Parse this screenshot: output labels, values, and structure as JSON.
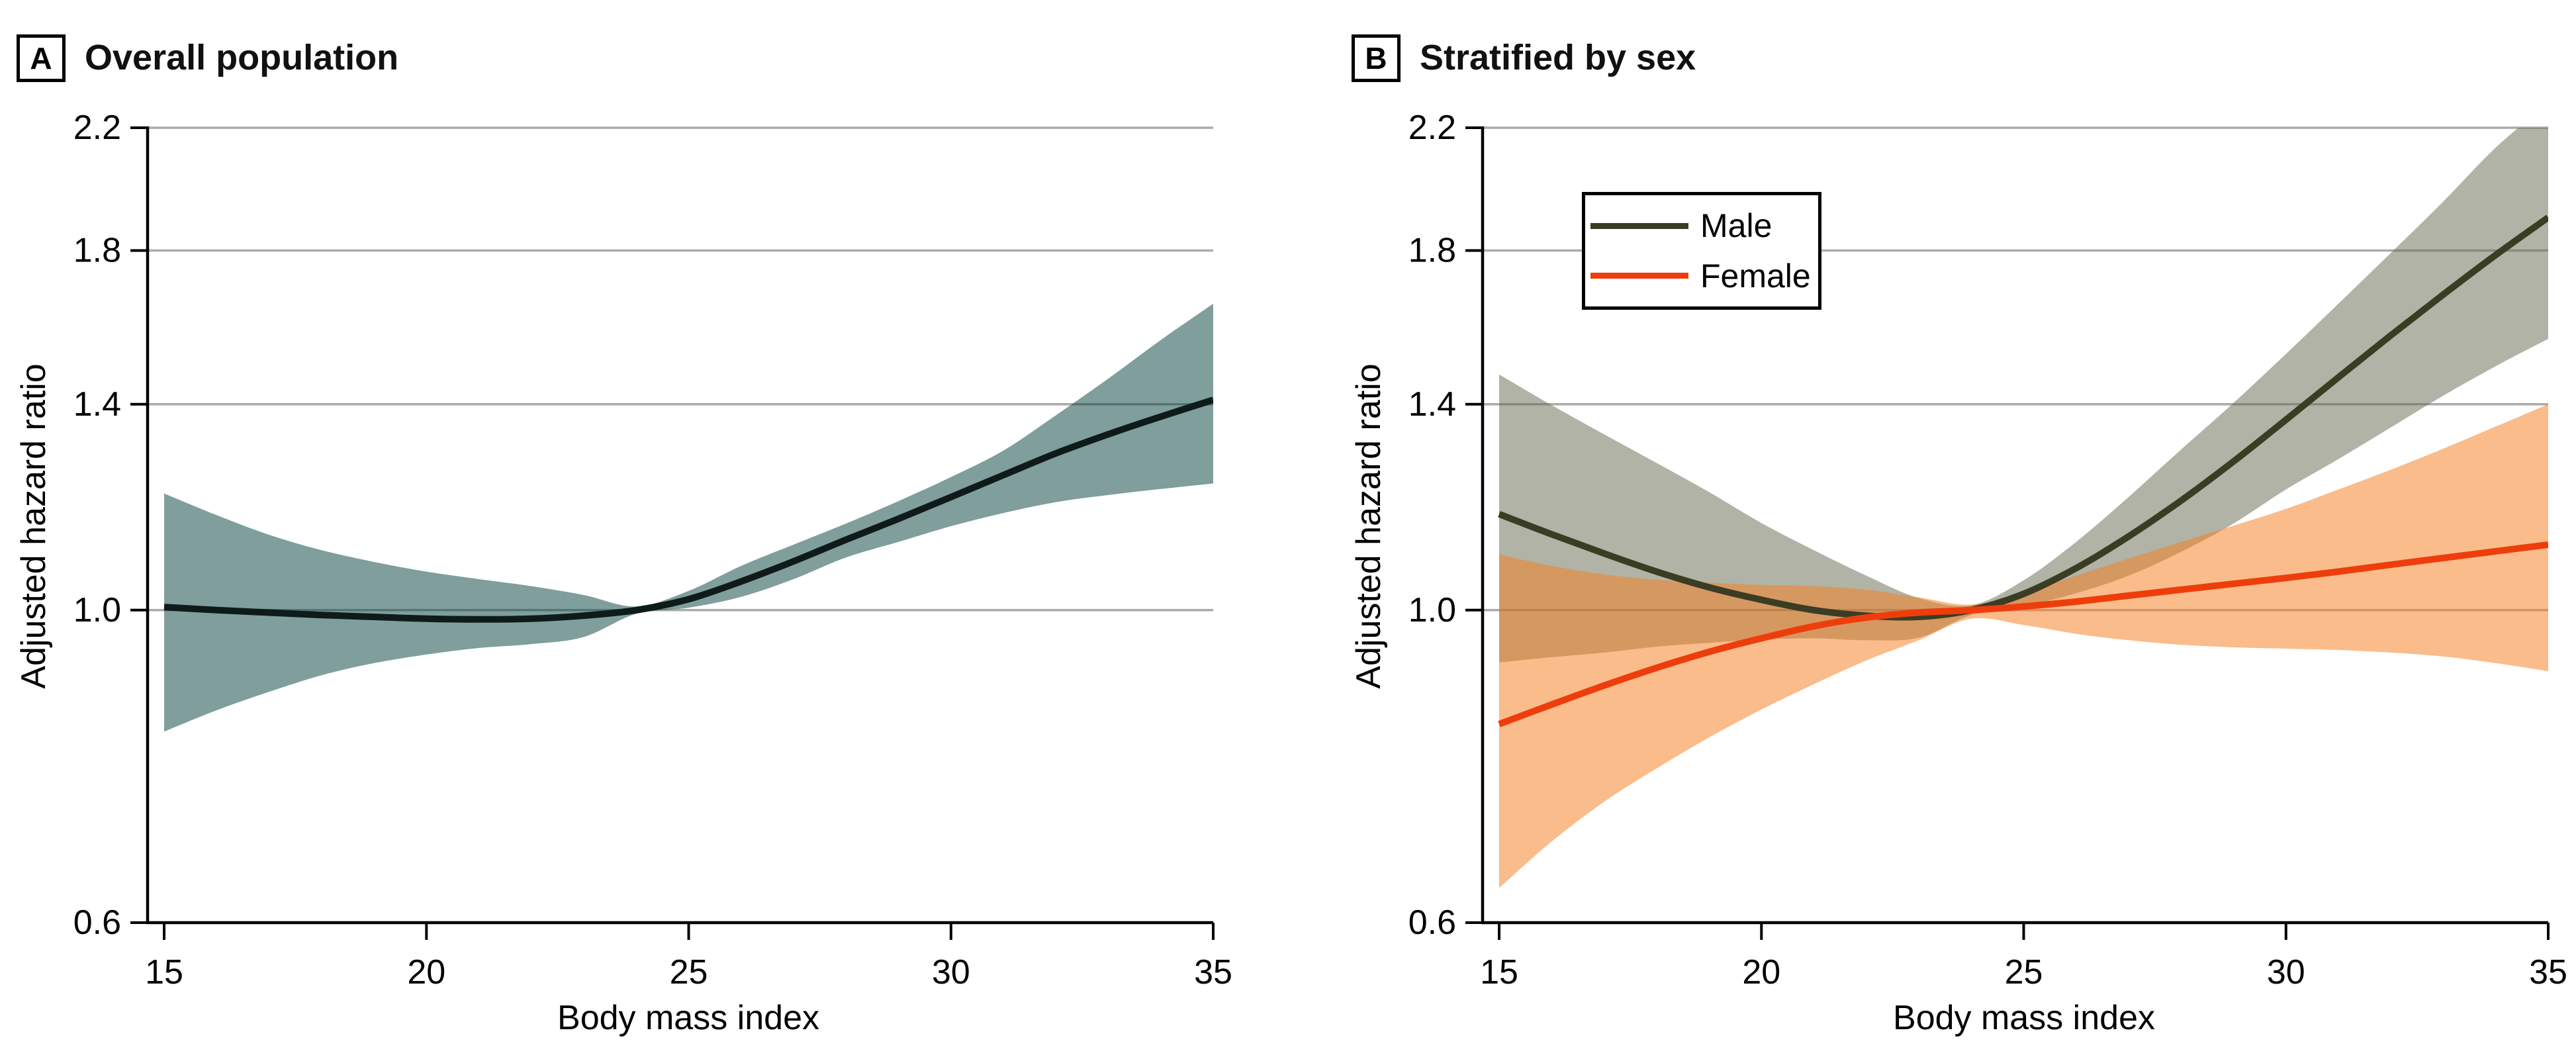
{
  "figure": {
    "background": "#ffffff",
    "grid_color": "#ABABAB",
    "axis_color": "#000000",
    "panels": [
      {
        "label": "A",
        "title": "Overall population",
        "y_axis": {
          "title": "Adjusted hazard ratio"
        },
        "x_axis": {
          "title": "Body mass index"
        }
      },
      {
        "label": "B",
        "title": "Stratified by sex",
        "y_axis": {
          "title": "Adjusted hazard ratio"
        },
        "x_axis": {
          "title": "Body mass index"
        },
        "legend": [
          {
            "label": "Male",
            "color": "#3A3D24"
          },
          {
            "label": "Female",
            "color": "#EE3D0C"
          }
        ]
      }
    ]
  },
  "chart_data": [
    {
      "type": "line",
      "panel": "A",
      "title": "Overall population",
      "xlabel": "Body mass index",
      "ylabel": "Adjusted hazard ratio",
      "x_ticks": [
        15,
        20,
        25,
        30,
        35
      ],
      "y_ticks": [
        0.6,
        1.0,
        1.4,
        1.8,
        2.2
      ],
      "xlim": [
        15,
        35
      ],
      "ylim": [
        0.6,
        2.2
      ],
      "y_scale": "log",
      "grid": true,
      "x": [
        15,
        16,
        17,
        18,
        19,
        20,
        21,
        22,
        23,
        24,
        25,
        26,
        27,
        28,
        29,
        30,
        31,
        32,
        33,
        34,
        35
      ],
      "series": [
        {
          "name": "Overall population",
          "line_color": "#0E1B19",
          "band_color": "rgba(0,62,58,0.5)",
          "hr": [
            1.005,
            1.0,
            0.996,
            0.992,
            0.989,
            0.986,
            0.985,
            0.986,
            0.991,
            1.0,
            1.018,
            1.048,
            1.083,
            1.122,
            1.161,
            1.203,
            1.247,
            1.292,
            1.333,
            1.372,
            1.41
          ],
          "ci_upper": [
            1.21,
            1.168,
            1.131,
            1.103,
            1.082,
            1.065,
            1.052,
            1.04,
            1.025,
            1.006,
            1.032,
            1.075,
            1.113,
            1.152,
            1.195,
            1.243,
            1.298,
            1.375,
            1.46,
            1.555,
            1.65
          ],
          "ci_lower": [
            0.82,
            0.849,
            0.875,
            0.899,
            0.917,
            0.93,
            0.94,
            0.946,
            0.957,
            0.994,
            1.004,
            1.022,
            1.052,
            1.09,
            1.118,
            1.147,
            1.172,
            1.193,
            1.207,
            1.219,
            1.23
          ]
        }
      ]
    },
    {
      "type": "line",
      "panel": "B",
      "title": "Stratified by sex",
      "xlabel": "Body mass index",
      "ylabel": "Adjusted hazard ratio",
      "x_ticks": [
        15,
        20,
        25,
        30,
        35
      ],
      "y_ticks": [
        0.6,
        1.0,
        1.4,
        1.8,
        2.2
      ],
      "xlim": [
        15,
        35
      ],
      "ylim": [
        0.6,
        2.2
      ],
      "y_scale": "log",
      "grid": true,
      "legend_position": "upper left",
      "x": [
        15,
        16,
        17,
        18,
        19,
        20,
        21,
        22,
        23,
        24,
        25,
        26,
        27,
        28,
        29,
        30,
        31,
        32,
        33,
        34,
        35
      ],
      "series": [
        {
          "name": "Male",
          "line_color": "#3A3D24",
          "band_color": "rgba(100,104,78,0.5)",
          "hr": [
            1.17,
            1.132,
            1.097,
            1.065,
            1.038,
            1.017,
            1.0,
            0.991,
            0.989,
            1.0,
            1.027,
            1.071,
            1.128,
            1.196,
            1.275,
            1.365,
            1.463,
            1.567,
            1.675,
            1.787,
            1.9
          ],
          "ci_upper": [
            1.47,
            1.398,
            1.333,
            1.272,
            1.213,
            1.153,
            1.103,
            1.058,
            1.02,
            1.008,
            1.05,
            1.118,
            1.203,
            1.3,
            1.403,
            1.52,
            1.65,
            1.793,
            1.95,
            2.13,
            2.29
          ],
          "ci_lower": [
            0.918,
            0.926,
            0.933,
            0.942,
            0.948,
            0.953,
            0.955,
            0.952,
            0.956,
            0.992,
            1.006,
            1.028,
            1.058,
            1.1,
            1.152,
            1.218,
            1.28,
            1.348,
            1.42,
            1.49,
            1.558
          ]
        },
        {
          "name": "Female",
          "line_color": "#EE3D0C",
          "band_color": "rgba(246,126,32,0.52)",
          "hr": [
            0.83,
            0.857,
            0.884,
            0.91,
            0.934,
            0.955,
            0.974,
            0.988,
            0.996,
            1.0,
            1.006,
            1.014,
            1.024,
            1.034,
            1.044,
            1.054,
            1.065,
            1.077,
            1.089,
            1.101,
            1.113
          ],
          "ci_upper": [
            1.095,
            1.075,
            1.06,
            1.051,
            1.046,
            1.042,
            1.04,
            1.034,
            1.021,
            1.009,
            1.029,
            1.058,
            1.088,
            1.118,
            1.148,
            1.18,
            1.218,
            1.258,
            1.302,
            1.35,
            1.4
          ],
          "ci_lower": [
            0.635,
            0.685,
            0.731,
            0.772,
            0.812,
            0.85,
            0.886,
            0.921,
            0.952,
            0.986,
            0.976,
            0.962,
            0.952,
            0.945,
            0.941,
            0.939,
            0.937,
            0.933,
            0.927,
            0.917,
            0.905
          ]
        }
      ]
    }
  ]
}
